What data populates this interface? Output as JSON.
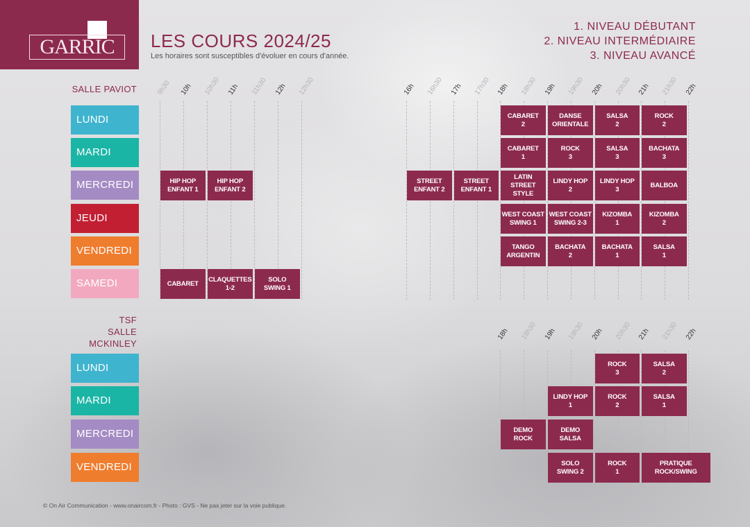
{
  "logo": {
    "text": "GARRIC"
  },
  "header": {
    "title": "LES COURS 2024/25",
    "subtitle": "Les horaires sont susceptibles d'évoluer en cours d'année."
  },
  "levels": [
    "1. NIVEAU DÉBUTANT",
    "2. NIVEAU INTERMÉDIAIRE",
    "3. NIVEAU AVANCÉ"
  ],
  "colors": {
    "accent": "#8c2a4d",
    "lundi": "#3fb4cf",
    "mardi": "#1bb5a6",
    "mercredi": "#a48bc4",
    "jeudi": "#c21f33",
    "vendredi": "#ef7d2e",
    "samedi": "#f2a9c0"
  },
  "sections": [
    {
      "label": "SALLE PAVIOT",
      "hours": [
        "9h30",
        "10h",
        "10h30",
        "11h",
        "11h30",
        "12h",
        "12h30",
        "16h",
        "16h30",
        "17h",
        "17h30",
        "18h",
        "18h30",
        "19h",
        "19h30",
        "20h",
        "20h30",
        "21h",
        "21h30",
        "22h"
      ],
      "days": [
        {
          "label": "LUNDI",
          "color_key": "lundi",
          "classes": [
            {
              "name": "CABARET\n2",
              "start": "18:00",
              "end": "19:00"
            },
            {
              "name": "DANSE\nORIENTALE",
              "start": "19:00",
              "end": "20:00"
            },
            {
              "name": "SALSA\n2",
              "start": "20:00",
              "end": "21:00"
            },
            {
              "name": "ROCK\n2",
              "start": "21:00",
              "end": "22:00"
            }
          ]
        },
        {
          "label": "MARDI",
          "color_key": "mardi",
          "classes": [
            {
              "name": "CABARET\n1",
              "start": "18:00",
              "end": "19:00"
            },
            {
              "name": "ROCK\n3",
              "start": "19:00",
              "end": "20:00"
            },
            {
              "name": "SALSA\n3",
              "start": "20:00",
              "end": "21:00"
            },
            {
              "name": "BACHATA\n3",
              "start": "21:00",
              "end": "22:00"
            }
          ]
        },
        {
          "label": "MERCREDI",
          "color_key": "mercredi",
          "classes": [
            {
              "name": "HIP HOP\nENFANT 1",
              "start": "9:30",
              "end": "10:30"
            },
            {
              "name": "HIP HOP\nENFANT 2",
              "start": "10:30",
              "end": "11:30"
            },
            {
              "name": "STREET\nENFANT 2",
              "start": "16:00",
              "end": "17:00"
            },
            {
              "name": "STREET\nENFANT 1",
              "start": "17:00",
              "end": "18:00"
            },
            {
              "name": "LATIN\nSTREET\nSTYLE",
              "start": "18:00",
              "end": "19:00"
            },
            {
              "name": "LINDY HOP\n2",
              "start": "19:00",
              "end": "20:00"
            },
            {
              "name": "LINDY HOP\n3",
              "start": "20:00",
              "end": "21:00"
            },
            {
              "name": "BALBOA",
              "start": "21:00",
              "end": "22:00"
            }
          ]
        },
        {
          "label": "JEUDI",
          "color_key": "jeudi",
          "classes": [
            {
              "name": "WEST COAST\nSWING 1",
              "start": "18:00",
              "end": "19:00"
            },
            {
              "name": "WEST COAST\nSWING 2-3",
              "start": "19:00",
              "end": "20:00"
            },
            {
              "name": "KIZOMBA\n1",
              "start": "20:00",
              "end": "21:00"
            },
            {
              "name": "KIZOMBA\n2",
              "start": "21:00",
              "end": "22:00"
            }
          ]
        },
        {
          "label": "VENDREDI",
          "color_key": "vendredi",
          "classes": [
            {
              "name": "TANGO\nARGENTIN",
              "start": "18:00",
              "end": "19:00"
            },
            {
              "name": "BACHATA\n2",
              "start": "19:00",
              "end": "20:00"
            },
            {
              "name": "BACHATA\n1",
              "start": "20:00",
              "end": "21:00"
            },
            {
              "name": "SALSA\n1",
              "start": "21:00",
              "end": "22:00"
            }
          ]
        },
        {
          "label": "SAMEDI",
          "color_key": "samedi",
          "classes": [
            {
              "name": "CABARET",
              "start": "9:30",
              "end": "10:30"
            },
            {
              "name": "CLAQUETTES\n1-2",
              "start": "10:30",
              "end": "11:30"
            },
            {
              "name": "SOLO\nSWING 1",
              "start": "11:30",
              "end": "12:30"
            }
          ]
        }
      ]
    },
    {
      "label": "TSF\nSALLE\nMCKINLEY",
      "hours": [
        "18h",
        "18h30",
        "19h",
        "19h30",
        "20h",
        "20h30",
        "21h",
        "21h30",
        "22h"
      ],
      "days": [
        {
          "label": "LUNDI",
          "color_key": "lundi",
          "classes": [
            {
              "name": "ROCK\n3",
              "start": "20:00",
              "end": "21:00"
            },
            {
              "name": "SALSA\n2",
              "start": "21:00",
              "end": "22:00"
            }
          ]
        },
        {
          "label": "MARDI",
          "color_key": "mardi",
          "classes": [
            {
              "name": "LINDY HOP\n1",
              "start": "19:00",
              "end": "20:00"
            },
            {
              "name": "ROCK\n2",
              "start": "20:00",
              "end": "21:00"
            },
            {
              "name": "SALSA\n1",
              "start": "21:00",
              "end": "22:00"
            }
          ]
        },
        {
          "label": "MERCREDI",
          "color_key": "mercredi",
          "classes": [
            {
              "name": "DEMO\nROCK",
              "start": "18:00",
              "end": "19:00"
            },
            {
              "name": "DEMO\nSALSA",
              "start": "19:00",
              "end": "20:00"
            }
          ]
        },
        {
          "label": "VENDREDI",
          "color_key": "vendredi",
          "classes": [
            {
              "name": "SOLO\nSWING 2",
              "start": "19:00",
              "end": "20:00"
            },
            {
              "name": "ROCK\n1",
              "start": "20:00",
              "end": "21:00"
            },
            {
              "name": "PRATIQUE\nROCK/SWING",
              "start": "21:00",
              "end": "22:30"
            }
          ]
        }
      ]
    }
  ],
  "footer": "© On Air Communication - www.onaircom.fr - Photo : GVS - Ne pas jeter sur la voie publique."
}
